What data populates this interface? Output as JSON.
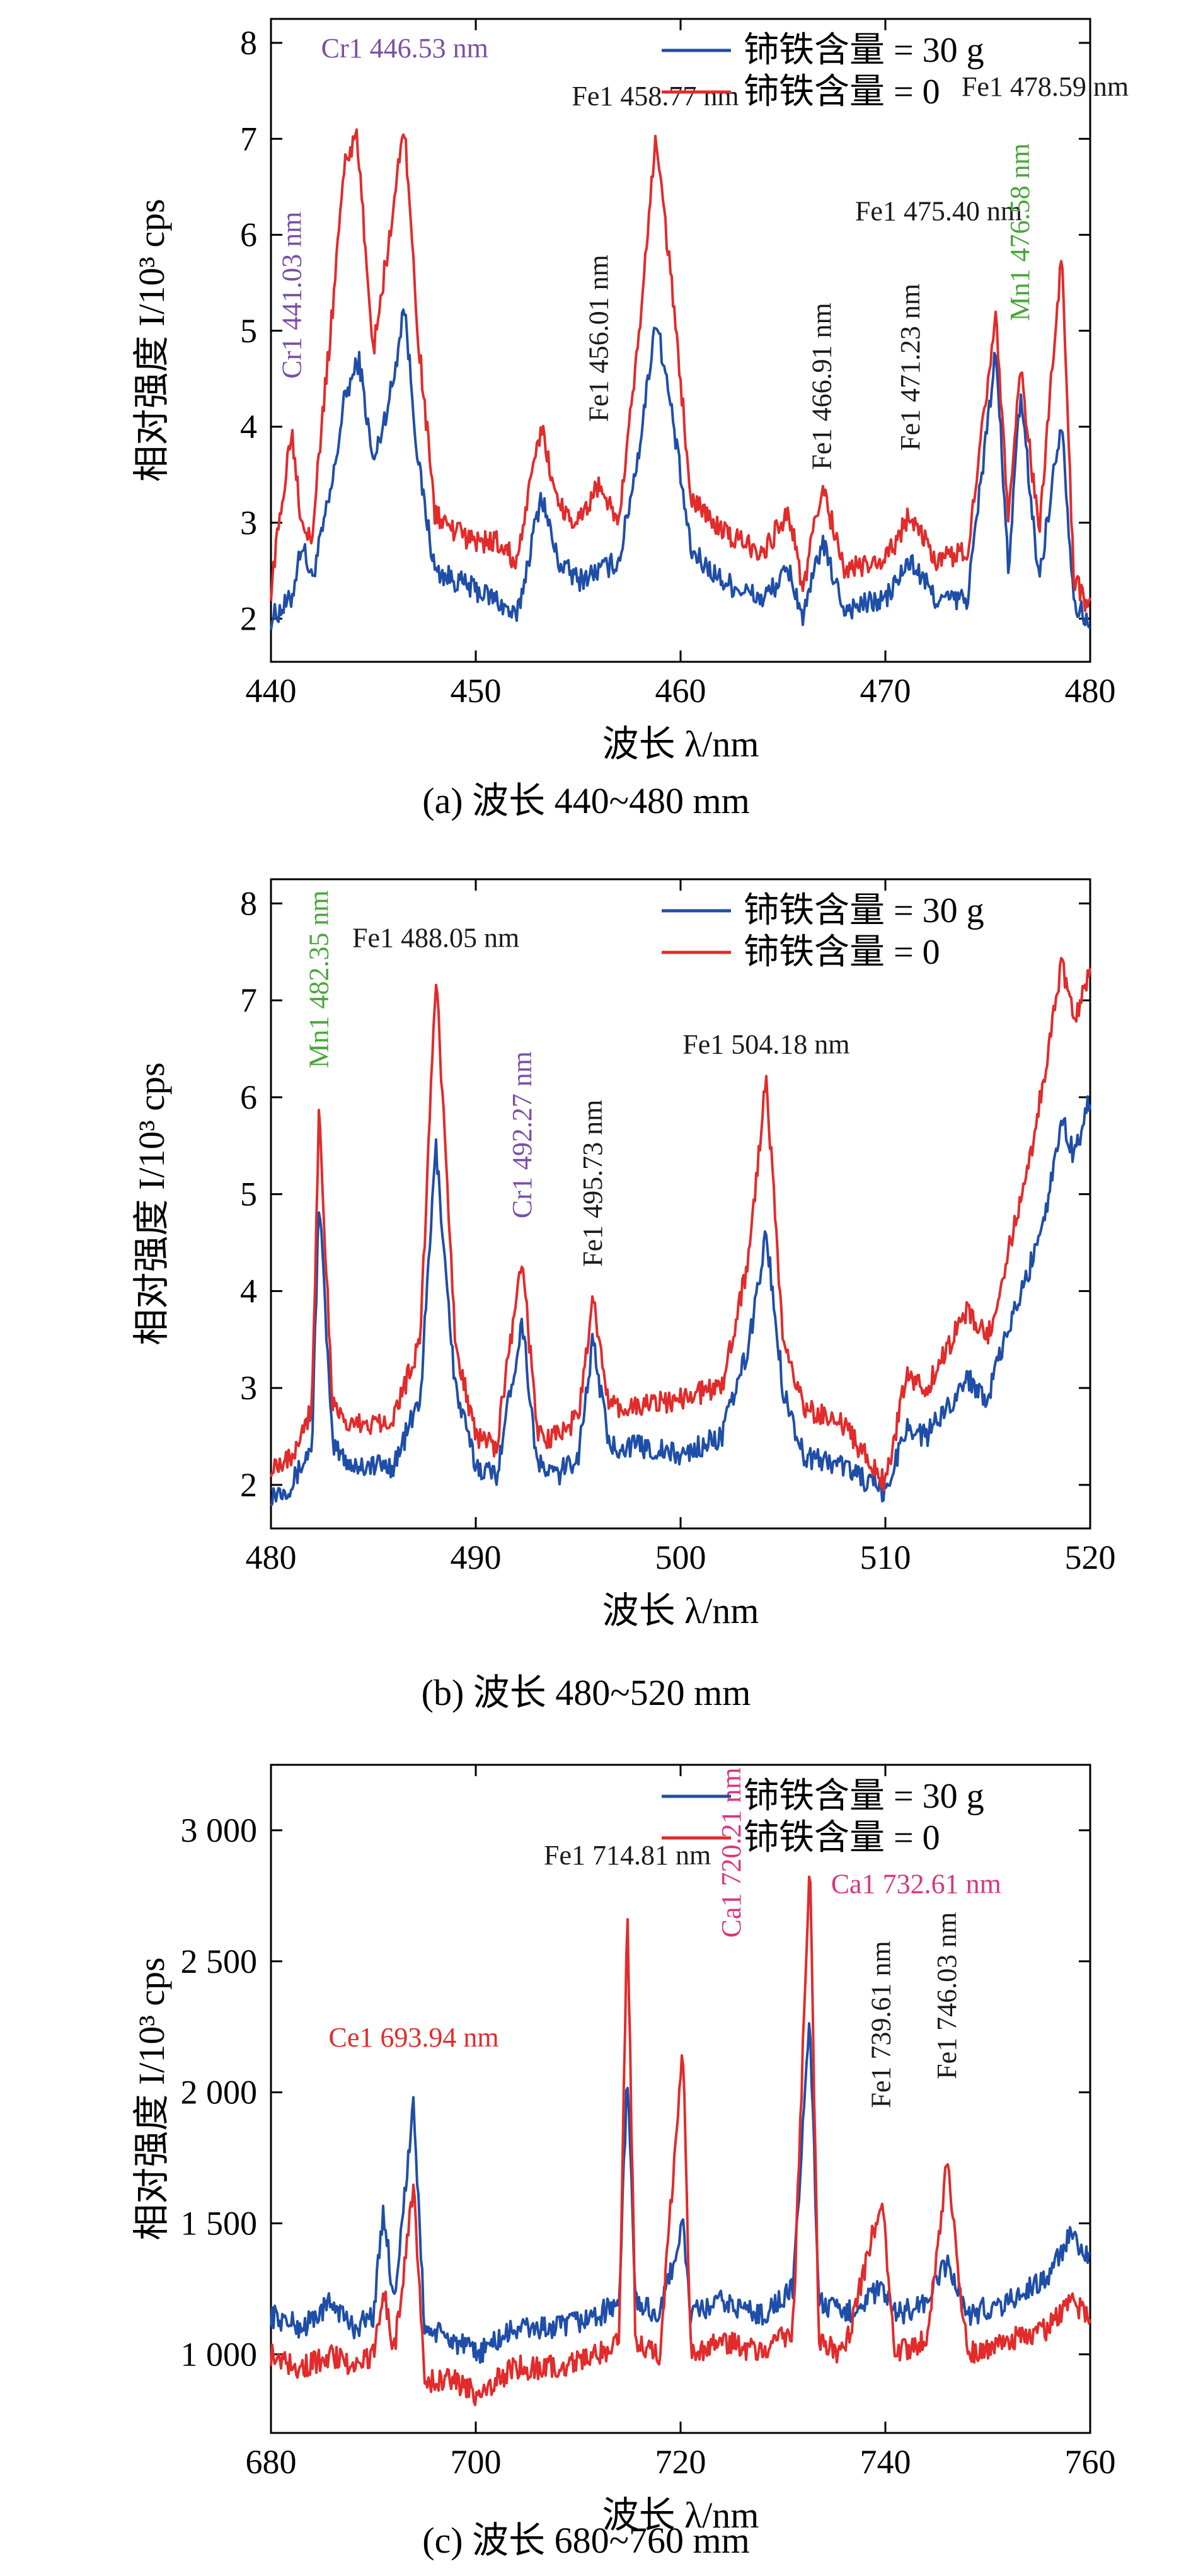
{
  "figure": {
    "legend_labels": [
      "铈铁含量 = 30 g",
      "铈铁含量 = 0"
    ]
  },
  "colors": {
    "series_30g": "#1f4ea8",
    "series_0": "#e22b2b",
    "annot_fe": "#1a1a1a",
    "annot_cr": "#7b4fa6",
    "annot_mn": "#4aa63a",
    "annot_ce": "#e22b2b",
    "annot_ca": "#d9367e"
  },
  "chart_data": [
    {
      "id": "a",
      "type": "line",
      "caption": "(a) 波长 440~480 mm",
      "xlabel": "波长 λ/nm",
      "ylabel": "相对强度 I/10³ cps",
      "xlim": [
        440,
        480
      ],
      "ylim": [
        1.55,
        8.25
      ],
      "xticks": [
        440,
        450,
        460,
        470,
        480
      ],
      "yticks": [
        2,
        3,
        4,
        5,
        6,
        7,
        8
      ],
      "ytick_labels": [
        "2",
        "3",
        "4",
        "5",
        "6",
        "7",
        "8"
      ],
      "legend_position": "top-right",
      "series": [
        {
          "name": "铈铁含量 = 30 g",
          "color_key": "series_30g",
          "x": [
            440,
            441,
            441.5,
            442,
            443,
            443.6,
            444.3,
            445,
            446,
            446.5,
            447.2,
            448,
            449,
            450,
            451,
            452,
            453.2,
            454,
            455,
            456,
            457,
            458,
            458.8,
            459.6,
            460.5,
            462,
            464,
            465.3,
            466,
            466.9,
            468,
            470,
            471.2,
            472.5,
            474,
            475.4,
            476,
            476.6,
            477.5,
            478.6,
            479.2,
            480
          ],
          "y": [
            2.0,
            2.2,
            2.8,
            2.4,
            3.4,
            4.3,
            4.7,
            3.6,
            4.5,
            5.3,
            3.6,
            2.5,
            2.4,
            2.3,
            2.2,
            2.0,
            3.3,
            2.6,
            2.4,
            2.5,
            2.6,
            3.8,
            5.15,
            4.1,
            2.7,
            2.4,
            2.2,
            2.5,
            2.0,
            2.8,
            2.1,
            2.2,
            2.6,
            2.2,
            2.2,
            4.8,
            2.5,
            4.35,
            2.4,
            4.1,
            2.2,
            1.9
          ]
        },
        {
          "name": "铈铁含量 = 0",
          "color_key": "series_0",
          "x": [
            440,
            441,
            441.5,
            442,
            443,
            443.6,
            444.2,
            445,
            446,
            446.5,
            447.2,
            448,
            449,
            450,
            451,
            452,
            453.2,
            454,
            455,
            456,
            457,
            458,
            458.8,
            459.6,
            460.5,
            462,
            464,
            465.3,
            466,
            466.9,
            468,
            470,
            471.2,
            472.5,
            474,
            475.4,
            476,
            476.6,
            477.5,
            478.6,
            479.2,
            480
          ],
          "y": [
            2.3,
            4.0,
            3.0,
            2.9,
            5.2,
            6.8,
            7.0,
            4.8,
            6.3,
            7.2,
            4.9,
            3.1,
            2.9,
            2.8,
            2.8,
            2.6,
            4.0,
            3.2,
            3.0,
            3.4,
            3.0,
            5.0,
            7.05,
            5.4,
            3.3,
            2.9,
            2.7,
            3.1,
            2.3,
            3.4,
            2.5,
            2.6,
            3.1,
            2.6,
            2.7,
            5.2,
            3.0,
            4.6,
            2.9,
            5.8,
            2.4,
            2.1
          ]
        }
      ],
      "annotations": [
        {
          "text": "Cr1 441.03 nm",
          "x": 441.03,
          "y": 4.5,
          "color_key": "annot_cr",
          "rotate": -90
        },
        {
          "text": "Cr1 446.53 nm",
          "x": 446.53,
          "y": 7.85,
          "color_key": "annot_cr",
          "rotate": 0
        },
        {
          "text": "Fe1 456.01 nm",
          "x": 456.01,
          "y": 4.05,
          "color_key": "annot_fe",
          "rotate": -90
        },
        {
          "text": "Fe1 458.77 nm",
          "x": 458.77,
          "y": 7.35,
          "color_key": "annot_fe",
          "rotate": 0
        },
        {
          "text": "Fe1 466.91 nm",
          "x": 466.91,
          "y": 3.55,
          "color_key": "annot_fe",
          "rotate": -90
        },
        {
          "text": "Fe1 471.23 nm",
          "x": 471.23,
          "y": 3.75,
          "color_key": "annot_fe",
          "rotate": -90
        },
        {
          "text": "Fe1 475.40 nm",
          "x": 472.6,
          "y": 6.15,
          "color_key": "annot_fe",
          "rotate": 0
        },
        {
          "text": "Mn1 476.58 nm",
          "x": 476.58,
          "y": 5.1,
          "color_key": "annot_mn",
          "rotate": -90
        },
        {
          "text": "Fe1 478.59 nm",
          "x": 477.8,
          "y": 7.45,
          "color_key": "annot_fe",
          "rotate": 0
        }
      ]
    },
    {
      "id": "b",
      "type": "line",
      "caption": "(b) 波长 480~520 mm",
      "xlabel": "波长 λ/nm",
      "ylabel": "相对强度 I/10³ cps",
      "xlim": [
        480,
        520
      ],
      "ylim": [
        1.55,
        8.25
      ],
      "xticks": [
        480,
        490,
        500,
        510,
        520
      ],
      "yticks": [
        2,
        3,
        4,
        5,
        6,
        7,
        8
      ],
      "ytick_labels": [
        "2",
        "3",
        "4",
        "5",
        "6",
        "7",
        "8"
      ],
      "legend_position": "top-right",
      "series": [
        {
          "name": "铈铁含量 = 30 g",
          "color_key": "series_30g",
          "x": [
            480,
            481,
            482,
            482.35,
            483,
            484,
            486,
            487.3,
            488.05,
            489,
            490,
            491,
            492.27,
            493,
            494,
            495,
            495.73,
            496.5,
            498,
            500,
            502,
            503.3,
            504.18,
            505,
            506,
            508,
            510,
            511,
            512,
            513,
            514,
            515,
            516,
            517,
            518,
            518.6,
            519.2,
            520
          ],
          "y": [
            1.9,
            2.0,
            2.4,
            5.0,
            2.4,
            2.2,
            2.2,
            2.9,
            5.5,
            3.0,
            2.2,
            2.1,
            3.7,
            2.2,
            2.1,
            2.3,
            3.5,
            2.4,
            2.4,
            2.3,
            2.5,
            3.4,
            4.6,
            3.0,
            2.3,
            2.2,
            1.9,
            2.6,
            2.5,
            2.8,
            3.1,
            2.9,
            3.6,
            4.2,
            5.0,
            5.8,
            5.4,
            6.0
          ]
        },
        {
          "name": "铈铁含量 = 0",
          "color_key": "series_0",
          "x": [
            480,
            481,
            482,
            482.35,
            483,
            484,
            486,
            487.3,
            488.05,
            489,
            490,
            491,
            492.27,
            493,
            494,
            495,
            495.73,
            496.5,
            498,
            500,
            502,
            503.3,
            504.18,
            505,
            506,
            508,
            510,
            511,
            512,
            513,
            514,
            515,
            516,
            517,
            518,
            518.6,
            519.2,
            520
          ],
          "y": [
            2.2,
            2.3,
            2.8,
            5.9,
            2.8,
            2.6,
            2.7,
            3.5,
            7.3,
            3.5,
            2.5,
            2.4,
            4.35,
            2.5,
            2.5,
            2.7,
            3.9,
            2.8,
            2.8,
            2.9,
            3.0,
            4.3,
            6.2,
            3.5,
            2.8,
            2.6,
            2.0,
            3.1,
            3.0,
            3.4,
            3.8,
            3.5,
            4.4,
            5.3,
            6.5,
            7.4,
            6.8,
            7.3
          ]
        }
      ],
      "annotations": [
        {
          "text": "Mn1 482.35 nm",
          "x": 482.35,
          "y": 6.3,
          "color_key": "annot_mn",
          "rotate": -90
        },
        {
          "text": "Fe1 488.05 nm",
          "x": 488.05,
          "y": 7.55,
          "color_key": "annot_fe",
          "rotate": 0
        },
        {
          "text": "Cr1 492.27 nm",
          "x": 492.27,
          "y": 4.75,
          "color_key": "annot_cr",
          "rotate": -90
        },
        {
          "text": "Fe1 495.73 nm",
          "x": 495.73,
          "y": 4.25,
          "color_key": "annot_fe",
          "rotate": -90
        },
        {
          "text": "Fe1 504.18 nm",
          "x": 504.18,
          "y": 6.45,
          "color_key": "annot_fe",
          "rotate": 0
        }
      ]
    },
    {
      "id": "c",
      "type": "line",
      "caption": "(c) 波长 680~760 mm",
      "xlabel": "波长 λ/nm",
      "ylabel": "相对强度 I/10³ cps",
      "xlim": [
        680,
        760
      ],
      "ylim": [
        700,
        3250
      ],
      "xticks": [
        680,
        700,
        720,
        740,
        760
      ],
      "yticks": [
        1000,
        1500,
        2000,
        2500,
        3000
      ],
      "ytick_labels": [
        "1 000",
        "1 500",
        "2 000",
        "2 500",
        "3 000"
      ],
      "legend_position": "top-right",
      "series": [
        {
          "name": "铈铁含量 = 30 g",
          "color_key": "series_30g",
          "x": [
            680,
            683,
            686,
            688,
            690,
            691,
            692,
            693.94,
            695,
            698,
            700,
            704,
            708,
            712,
            714,
            714.81,
            715.6,
            718,
            720.21,
            721,
            724,
            728,
            731,
            732.61,
            733.5,
            736,
            739.61,
            741,
            744,
            746.03,
            748,
            752,
            756,
            758,
            760
          ],
          "y": [
            1150,
            1100,
            1200,
            1100,
            1150,
            1550,
            1200,
            1950,
            1100,
            1050,
            1000,
            1100,
            1100,
            1150,
            1200,
            2080,
            1200,
            1150,
            1500,
            1150,
            1200,
            1150,
            1250,
            2300,
            1200,
            1150,
            1250,
            1150,
            1200,
            1350,
            1150,
            1200,
            1300,
            1450,
            1350
          ]
        },
        {
          "name": "铈铁含量 = 0",
          "color_key": "series_0",
          "x": [
            680,
            683,
            686,
            688,
            690,
            691,
            692,
            693.94,
            695,
            698,
            700,
            704,
            708,
            712,
            714,
            714.81,
            715.6,
            718,
            720.21,
            721,
            724,
            728,
            731,
            732.61,
            733.5,
            736,
            739.61,
            741,
            744,
            746.03,
            748,
            752,
            756,
            758,
            760
          ],
          "y": [
            1000,
            950,
            1000,
            950,
            1000,
            1250,
            1000,
            1650,
            900,
            900,
            850,
            950,
            950,
            1000,
            1050,
            2700,
            1050,
            1000,
            2200,
            1000,
            1050,
            1000,
            1100,
            2900,
            1050,
            1000,
            1600,
            1000,
            1050,
            1730,
            1000,
            1050,
            1100,
            1200,
            1150
          ]
        }
      ],
      "annotations": [
        {
          "text": "Ce1 693.94 nm",
          "x": 693.94,
          "y": 2175,
          "color_key": "annot_ce",
          "rotate": 0
        },
        {
          "text": "Fe1 714.81 nm",
          "x": 714.81,
          "y": 2870,
          "color_key": "annot_fe",
          "rotate": 0
        },
        {
          "text": "Ca1 720.21 nm",
          "x": 725.0,
          "y": 2590,
          "color_key": "annot_ca",
          "rotate": -90
        },
        {
          "text": "Ca1 732.61 nm",
          "x": 743.0,
          "y": 2760,
          "color_key": "annot_ca",
          "rotate": 0
        },
        {
          "text": "Fe1 739.61 nm",
          "x": 739.61,
          "y": 1940,
          "color_key": "annot_fe",
          "rotate": -90
        },
        {
          "text": "Fe1 746.03 nm",
          "x": 746.03,
          "y": 2050,
          "color_key": "annot_fe",
          "rotate": -90
        }
      ]
    }
  ]
}
